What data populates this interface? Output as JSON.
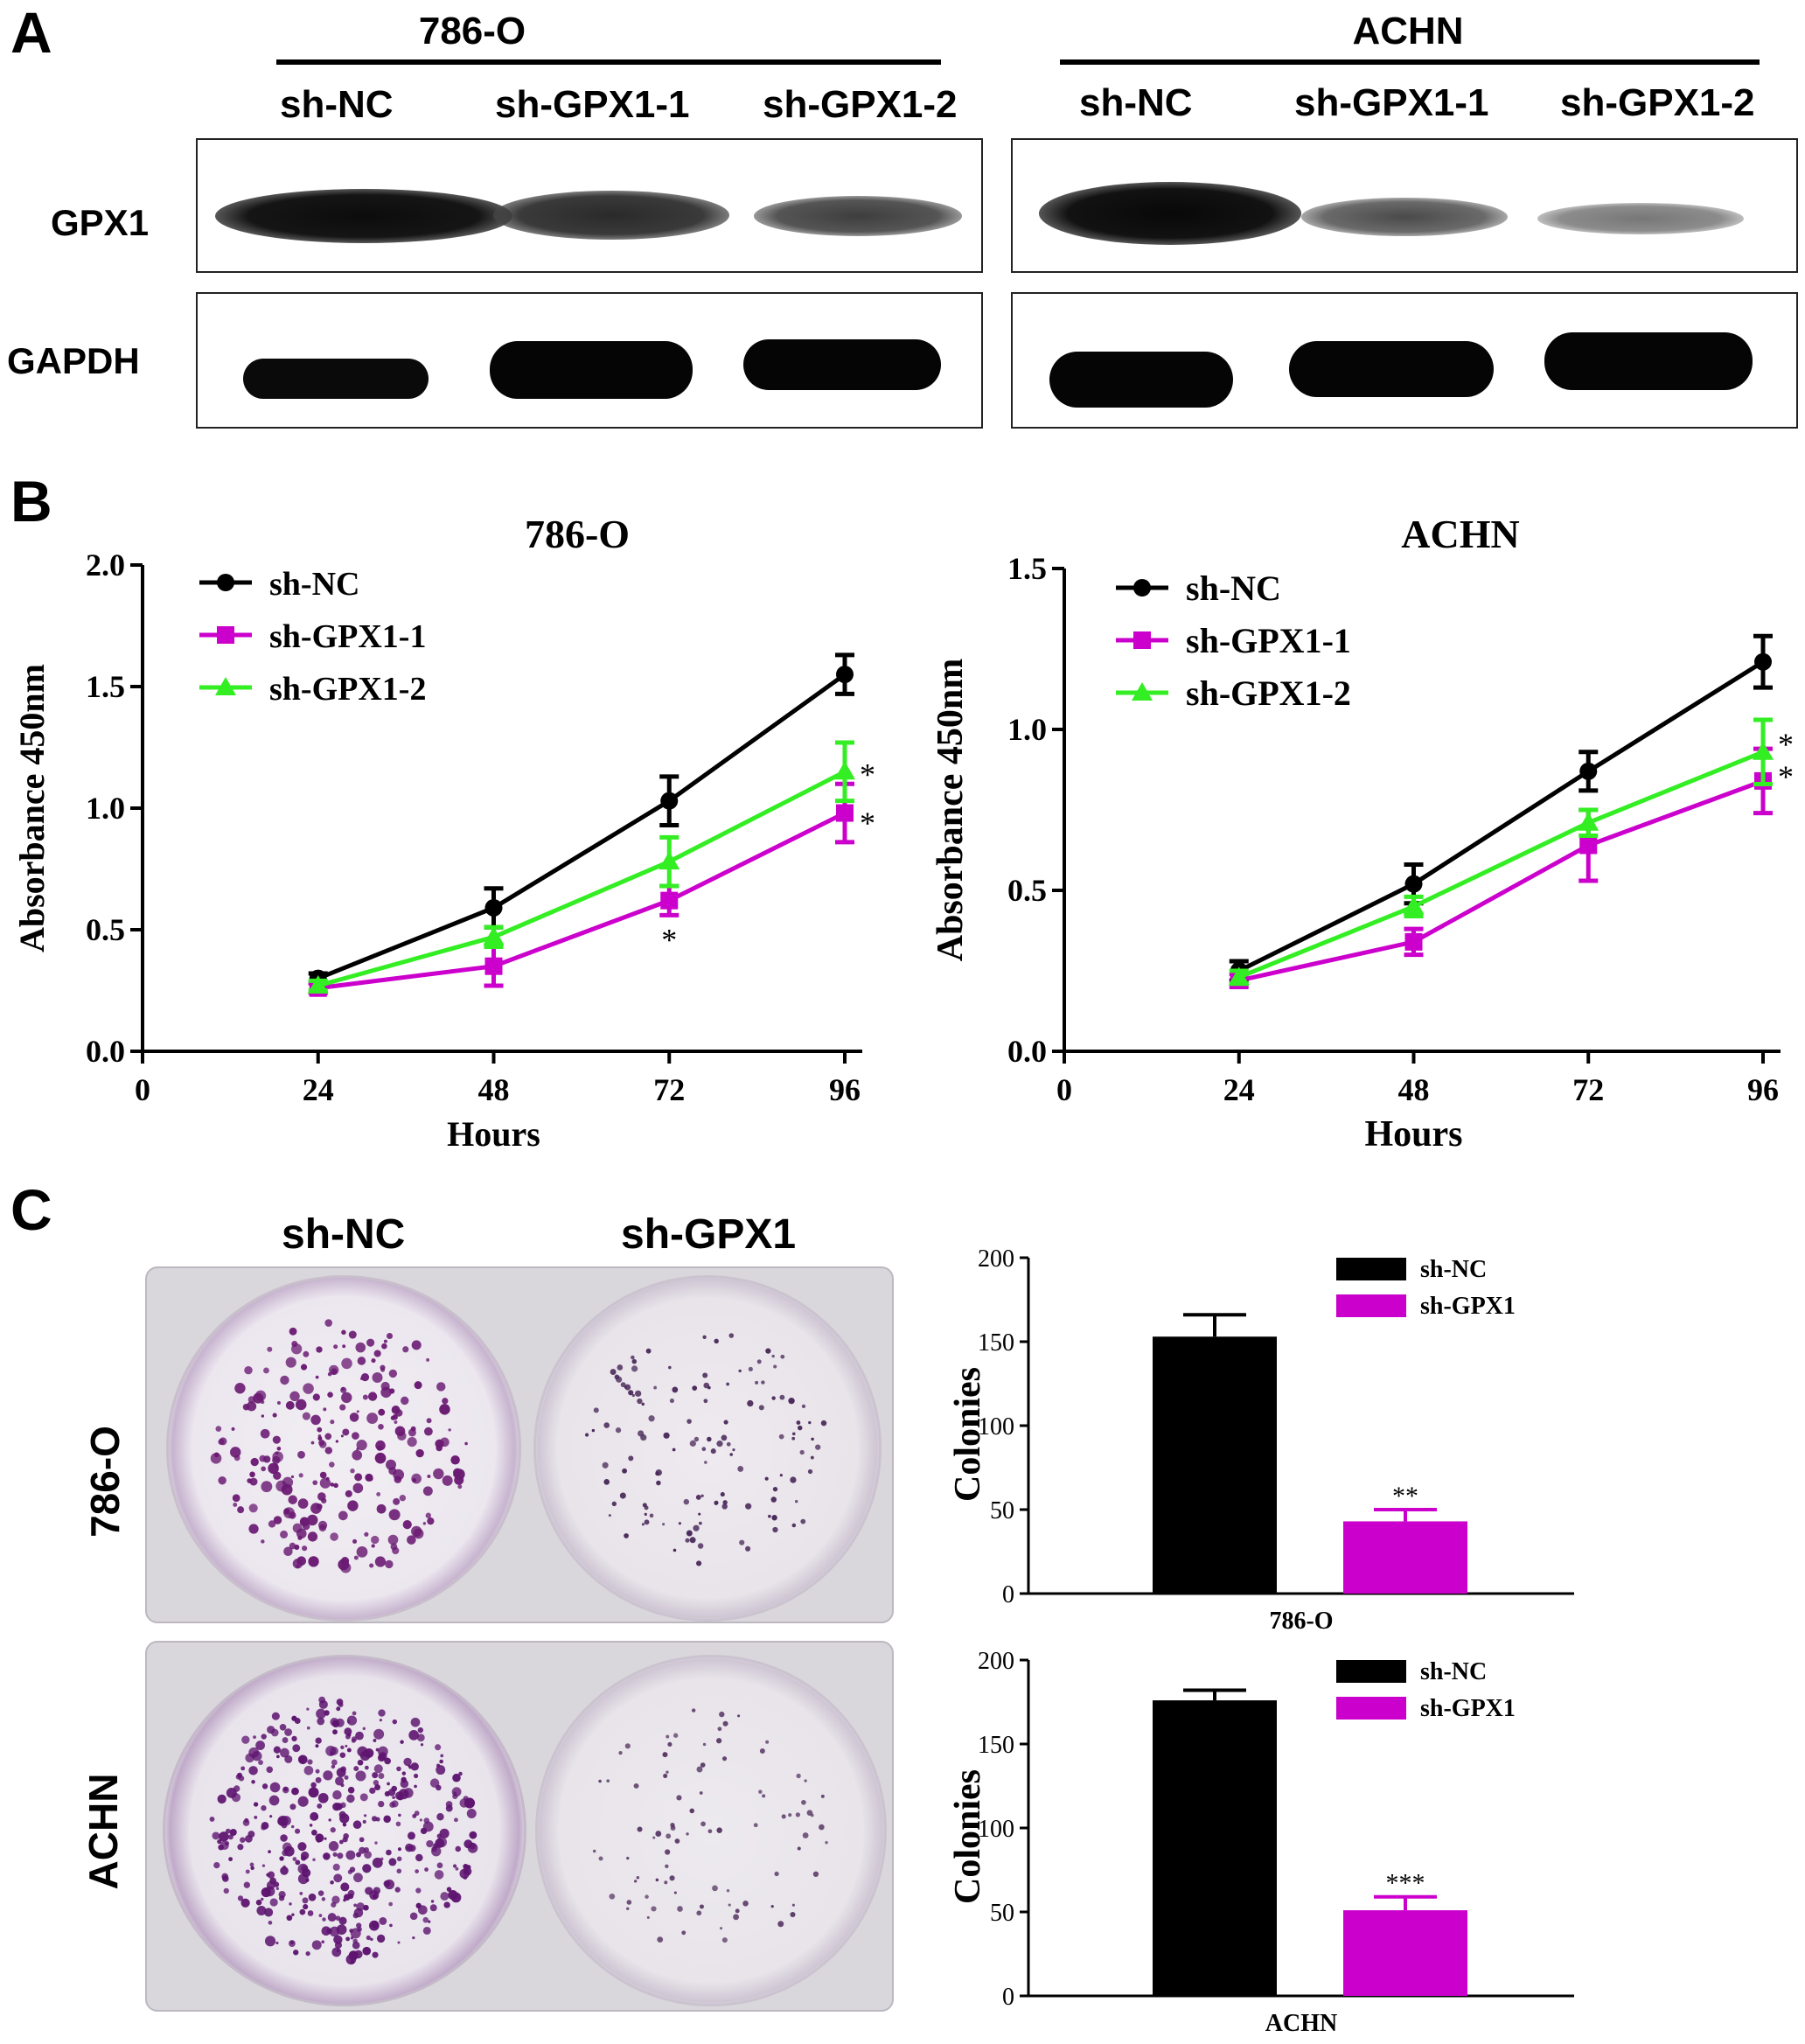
{
  "panel_a": {
    "letter": "A",
    "groups": [
      {
        "cell_line": "786-O",
        "lanes": [
          "sh-NC",
          "sh-GPX1-1",
          "sh-GPX1-2"
        ]
      },
      {
        "cell_line": "ACHN",
        "lanes": [
          "sh-NC",
          "sh-GPX1-1",
          "sh-GPX1-2"
        ]
      }
    ],
    "rows": [
      "GPX1",
      "GAPDH"
    ]
  },
  "panel_b": {
    "letter": "B"
  },
  "panel_c": {
    "letter": "C",
    "col_labels": [
      "sh-NC",
      "sh-GPX1"
    ],
    "row_labels": [
      "786-O",
      "ACHN"
    ]
  },
  "colors": {
    "sh_nc": "#000000",
    "sh_gpx1_1": "#cc00cc",
    "sh_gpx1_2": "#33ee22"
  },
  "chart_data": [
    {
      "type": "line",
      "title": "786-O",
      "xlabel": "Hours",
      "ylabel": "Absorbance 450nm",
      "x_ticks": [
        "0",
        "24",
        "48",
        "72",
        "96"
      ],
      "y_ticks": [
        "0.0",
        "0.5",
        "1.0",
        "1.5",
        "2.0"
      ],
      "xlim": [
        0,
        96
      ],
      "ylim": [
        0,
        2.0
      ],
      "x": [
        24,
        48,
        72,
        96
      ],
      "series": [
        {
          "name": "sh-NC",
          "values": [
            0.3,
            0.59,
            1.03,
            1.55
          ],
          "errors": [
            0.02,
            0.08,
            0.1,
            0.08
          ],
          "marker": "circle",
          "color": "#000000"
        },
        {
          "name": "sh-GPX1-1",
          "values": [
            0.26,
            0.35,
            0.62,
            0.98
          ],
          "errors": [
            0.02,
            0.08,
            0.06,
            0.12
          ],
          "marker": "square",
          "color": "#cc00cc"
        },
        {
          "name": "sh-GPX1-2",
          "values": [
            0.27,
            0.47,
            0.78,
            1.15
          ],
          "errors": [
            0.02,
            0.04,
            0.1,
            0.12
          ],
          "marker": "triangle",
          "color": "#33ee22"
        }
      ],
      "annotations": [
        {
          "text": "*",
          "x": 72,
          "y": 0.48
        },
        {
          "text": "*",
          "x": 96,
          "y": 1.16
        },
        {
          "text": "*",
          "x": 96,
          "y": 0.96
        }
      ],
      "legend": "top-left"
    },
    {
      "type": "line",
      "title": "ACHN",
      "xlabel": "Hours",
      "ylabel": "Absorbance 450nm",
      "x_ticks": [
        "0",
        "24",
        "48",
        "72",
        "96"
      ],
      "y_ticks": [
        "0.0",
        "0.5",
        "1.0",
        "1.5"
      ],
      "xlim": [
        0,
        96
      ],
      "ylim": [
        0,
        1.5
      ],
      "x": [
        24,
        48,
        72,
        96
      ],
      "series": [
        {
          "name": "sh-NC",
          "values": [
            0.25,
            0.52,
            0.87,
            1.21
          ],
          "errors": [
            0.03,
            0.06,
            0.06,
            0.08
          ],
          "marker": "circle",
          "color": "#000000"
        },
        {
          "name": "sh-GPX1-1",
          "values": [
            0.22,
            0.34,
            0.64,
            0.84
          ],
          "errors": [
            0.02,
            0.04,
            0.11,
            0.1
          ],
          "marker": "square",
          "color": "#cc00cc"
        },
        {
          "name": "sh-GPX1-2",
          "values": [
            0.23,
            0.45,
            0.71,
            0.93
          ],
          "errors": [
            0.02,
            0.03,
            0.04,
            0.1
          ],
          "marker": "triangle",
          "color": "#33ee22"
        }
      ],
      "annotations": [
        {
          "text": "*",
          "x": 96,
          "y": 0.97
        },
        {
          "text": "*",
          "x": 96,
          "y": 0.87
        }
      ],
      "legend": "top-left"
    },
    {
      "type": "bar",
      "xlabel": "786-O",
      "ylabel": "Colonies",
      "y_ticks": [
        "0",
        "50",
        "100",
        "150",
        "200"
      ],
      "ylim": [
        0,
        200
      ],
      "categories": [
        "sh-NC",
        "sh-GPX1"
      ],
      "values": [
        153,
        43
      ],
      "errors": [
        13,
        7
      ],
      "annotations": [
        "",
        "**"
      ],
      "colors": [
        "#000000",
        "#cc00cc"
      ],
      "legend": "top-right"
    },
    {
      "type": "bar",
      "xlabel": "ACHN",
      "ylabel": "Colonies",
      "y_ticks": [
        "0",
        "50",
        "100",
        "150",
        "200"
      ],
      "ylim": [
        0,
        200
      ],
      "categories": [
        "sh-NC",
        "sh-GPX1"
      ],
      "values": [
        176,
        51
      ],
      "errors": [
        6,
        8
      ],
      "annotations": [
        "",
        "***"
      ],
      "colors": [
        "#000000",
        "#cc00cc"
      ],
      "legend": "top-right"
    }
  ]
}
